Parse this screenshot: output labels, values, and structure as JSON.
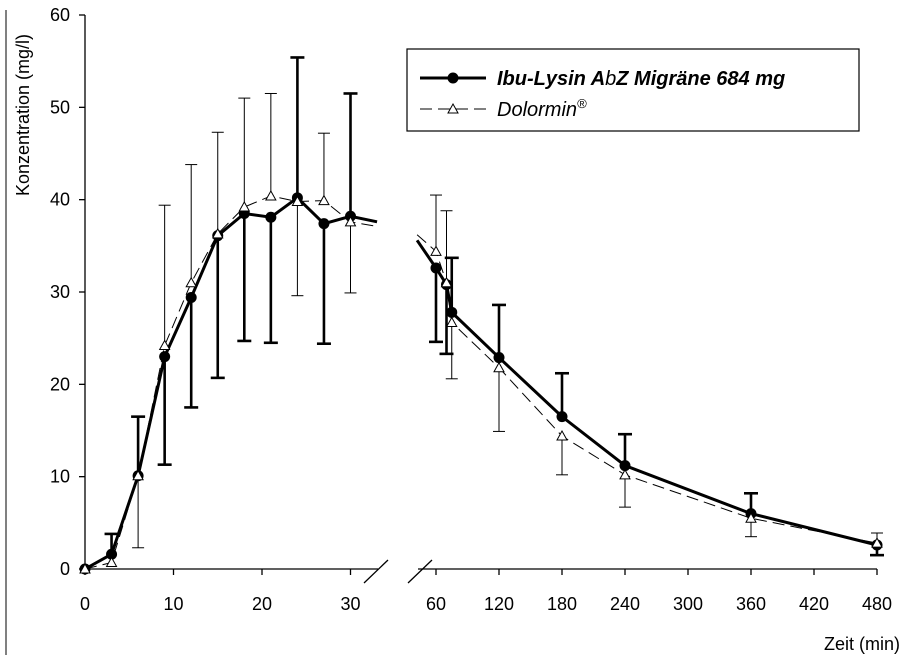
{
  "chart_data": {
    "type": "line",
    "ylabel": "Konzentration (mg/l)",
    "xlabel": "Zeit (min)",
    "ylim": [
      0,
      60
    ],
    "y_ticks": [
      "0",
      "10",
      "20",
      "30",
      "40",
      "50",
      "60"
    ],
    "x_ticks_left": [
      "0",
      "10",
      "20",
      "30"
    ],
    "x_ticks_right": [
      "60",
      "120",
      "180",
      "240",
      "300",
      "360",
      "420",
      "480"
    ],
    "broken_x_axis": true,
    "legend_position": "top-right",
    "series": [
      {
        "name_main": "Ibu-Lysin A",
        "name_b": "b",
        "name_rest": "Z Migräne 684 mg",
        "style": "solid bold, filled circle",
        "color": "#000000",
        "points": [
          {
            "x": 0,
            "y": 0,
            "lo": 0,
            "hi": 0
          },
          {
            "x": 3,
            "y": 1.6,
            "lo": 1.6,
            "hi": 3.8
          },
          {
            "x": 6,
            "y": 10.1,
            "lo": 10.1,
            "hi": 16.5
          },
          {
            "x": 9,
            "y": 23.0,
            "lo": 11.3,
            "hi": 23.0
          },
          {
            "x": 12,
            "y": 29.4,
            "lo": 17.5,
            "hi": 29.4
          },
          {
            "x": 15,
            "y": 36.1,
            "lo": 20.7,
            "hi": 36.1
          },
          {
            "x": 18,
            "y": 38.5,
            "lo": 24.7,
            "hi": 38.5
          },
          {
            "x": 21,
            "y": 38.1,
            "lo": 24.5,
            "hi": 38.1
          },
          {
            "x": 24,
            "y": 40.2,
            "lo": 40.2,
            "hi": 55.4
          },
          {
            "x": 27,
            "y": 37.4,
            "lo": 24.4,
            "hi": 37.4
          },
          {
            "x": 30,
            "y": 38.2,
            "lo": 38.2,
            "hi": 51.5
          },
          {
            "x": 60,
            "y": 32.6,
            "lo": 24.6,
            "hi": 32.6
          },
          {
            "x": 70,
            "y": 30.8,
            "lo": 23.3,
            "hi": 30.8
          },
          {
            "x": 75,
            "y": 27.8,
            "lo": 27.8,
            "hi": 33.7
          },
          {
            "x": 120,
            "y": 22.9,
            "lo": 22.9,
            "hi": 28.6
          },
          {
            "x": 180,
            "y": 16.5,
            "lo": 16.5,
            "hi": 21.2
          },
          {
            "x": 240,
            "y": 11.2,
            "lo": 11.2,
            "hi": 14.6
          },
          {
            "x": 360,
            "y": 6.0,
            "lo": 6.0,
            "hi": 8.2
          },
          {
            "x": 480,
            "y": 2.6,
            "lo": 1.5,
            "hi": 2.6
          }
        ],
        "tail_left": [
          {
            "x": 33,
            "y": 37.6
          }
        ],
        "head_right": [
          {
            "x": 42,
            "y": 35.6
          }
        ]
      },
      {
        "name_main": "Dolormin",
        "name_sup": "®",
        "style": "thin dashed, open triangle",
        "color": "#000000",
        "points": [
          {
            "x": 0,
            "y": 0,
            "lo": 0,
            "hi": 0
          },
          {
            "x": 3,
            "y": 0.7,
            "lo": 0.7,
            "hi": 0.7
          },
          {
            "x": 6,
            "y": 10.1,
            "lo": 2.3,
            "hi": 10.1
          },
          {
            "x": 9,
            "y": 24.2,
            "lo": 24.2,
            "hi": 39.4
          },
          {
            "x": 12,
            "y": 31.0,
            "lo": 31.0,
            "hi": 43.8
          },
          {
            "x": 15,
            "y": 36.3,
            "lo": 36.3,
            "hi": 47.3
          },
          {
            "x": 18,
            "y": 39.2,
            "lo": 39.2,
            "hi": 51.0
          },
          {
            "x": 21,
            "y": 40.4,
            "lo": 40.4,
            "hi": 51.5
          },
          {
            "x": 24,
            "y": 39.8,
            "lo": 29.6,
            "hi": 39.8
          },
          {
            "x": 27,
            "y": 39.9,
            "lo": 39.9,
            "hi": 47.2
          },
          {
            "x": 30,
            "y": 37.6,
            "lo": 29.9,
            "hi": 37.6
          },
          {
            "x": 60,
            "y": 34.4,
            "lo": 34.4,
            "hi": 40.5
          },
          {
            "x": 70,
            "y": 31.0,
            "lo": 31.0,
            "hi": 38.8
          },
          {
            "x": 75,
            "y": 26.7,
            "lo": 20.6,
            "hi": 26.7
          },
          {
            "x": 120,
            "y": 21.8,
            "lo": 14.9,
            "hi": 21.8
          },
          {
            "x": 180,
            "y": 14.4,
            "lo": 10.2,
            "hi": 14.4
          },
          {
            "x": 240,
            "y": 10.2,
            "lo": 6.7,
            "hi": 10.2
          },
          {
            "x": 360,
            "y": 5.5,
            "lo": 3.5,
            "hi": 5.5
          },
          {
            "x": 480,
            "y": 2.8,
            "lo": 2.8,
            "hi": 3.9
          }
        ],
        "tail_left": [
          {
            "x": 33,
            "y": 37.1
          }
        ],
        "head_right": [
          {
            "x": 42,
            "y": 36.2
          }
        ]
      }
    ]
  }
}
